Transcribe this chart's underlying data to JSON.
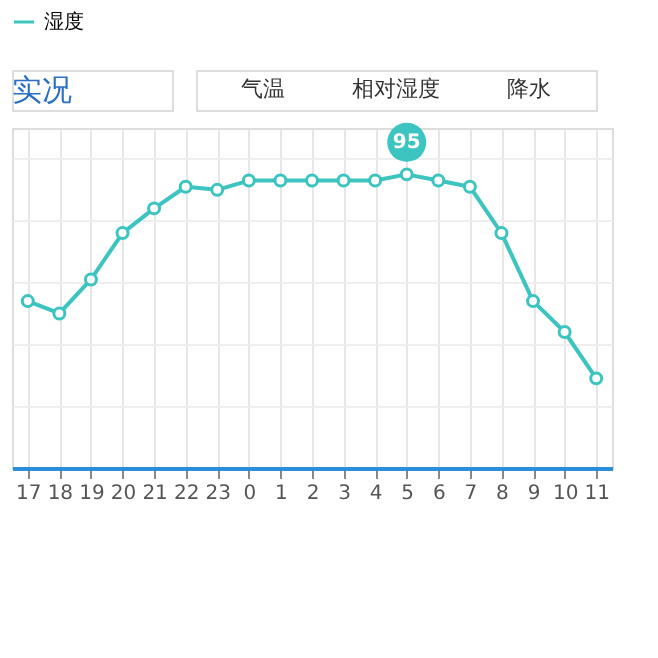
{
  "chart_data": {
    "type": "line",
    "title": "实况",
    "annotations": [
      "气温",
      "相对湿度",
      "降水"
    ],
    "categories": [
      "17",
      "18",
      "19",
      "20",
      "21",
      "22",
      "23",
      "0",
      "1",
      "2",
      "3",
      "4",
      "5",
      "6",
      "7",
      "8",
      "9",
      "10",
      "11"
    ],
    "ylim": [
      0,
      110
    ],
    "tick_labels": "x",
    "series": [
      {
        "name": "湿度",
        "color": "#3cc4c0",
        "line_style": "solid",
        "values": [
          54,
          50,
          61,
          76,
          84,
          91,
          90,
          93,
          93,
          93,
          93,
          93,
          95,
          93,
          91,
          76,
          54,
          44,
          29
        ],
        "value_labels": [
          null,
          null,
          null,
          null,
          null,
          null,
          null,
          null,
          null,
          null,
          null,
          null,
          "95",
          null,
          null,
          null,
          null,
          null,
          null
        ]
      }
    ],
    "marker": "circle",
    "grid": true,
    "legend": "top"
  }
}
